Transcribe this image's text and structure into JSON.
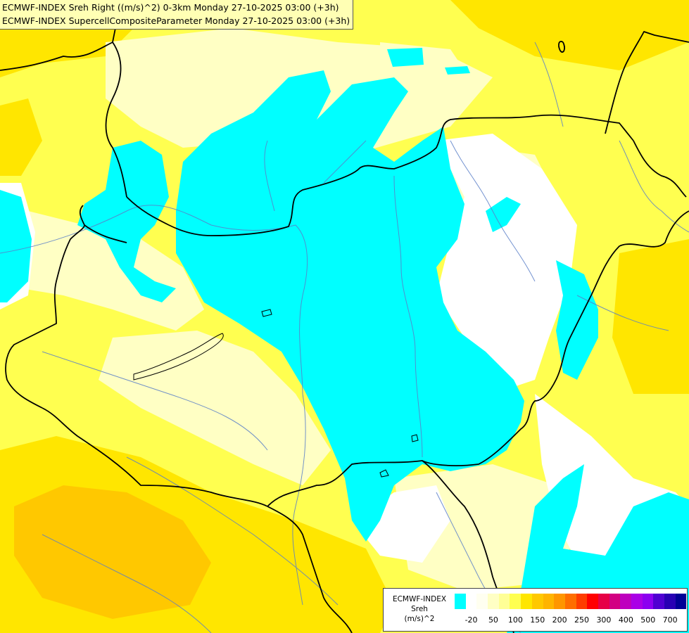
{
  "title": {
    "line1": "ECMWF-INDEX Sreh Right ((m/s)^2) 0-3km Monday 27-10-2025 03:00 (+3h)",
    "line2": "ECMWF-INDEX SupercellCompositeParameter Monday 27-10-2025 03:00 (+3h)"
  },
  "legend": {
    "line1": "ECMWF-INDEX",
    "line2": "Sreh",
    "line3": "(m/s)^2",
    "colors": [
      "#00ffff",
      "#ffffff",
      "#fffff0",
      "#ffffc4",
      "#ffff96",
      "#ffff50",
      "#ffe600",
      "#ffc800",
      "#ffb400",
      "#ff9600",
      "#ff6e00",
      "#ff3c00",
      "#ff0000",
      "#e60046",
      "#d20082",
      "#be00be",
      "#aa00e6",
      "#8c00f0",
      "#5000d2",
      "#2800b4",
      "#000096"
    ],
    "ticks": [
      {
        "label": "-20",
        "index": 1
      },
      {
        "label": "50",
        "index": 3
      },
      {
        "label": "100",
        "index": 5
      },
      {
        "label": "150",
        "index": 7
      },
      {
        "label": "200",
        "index": 9
      },
      {
        "label": "250",
        "index": 11
      },
      {
        "label": "300",
        "index": 13
      },
      {
        "label": "400",
        "index": 15
      },
      {
        "label": "500",
        "index": 17
      },
      {
        "label": "700",
        "index": 19
      }
    ]
  }
}
